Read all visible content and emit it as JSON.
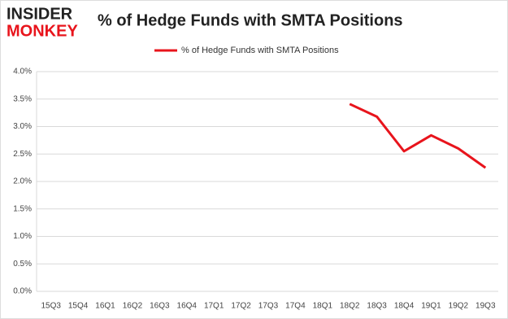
{
  "logo": {
    "top": "INSIDER",
    "bottom": "MONKEY"
  },
  "chart_data": {
    "type": "line",
    "title": "% of Hedge Funds with SMTA Positions",
    "categories": [
      "15Q3",
      "15Q4",
      "16Q1",
      "16Q2",
      "16Q3",
      "16Q4",
      "17Q1",
      "17Q2",
      "17Q3",
      "17Q4",
      "18Q1",
      "18Q2",
      "18Q3",
      "18Q4",
      "19Q1",
      "19Q2",
      "19Q3"
    ],
    "series": [
      {
        "name": "% of Hedge Funds with SMTA Positions",
        "color": "#e8141c",
        "values": [
          null,
          null,
          null,
          null,
          null,
          null,
          null,
          null,
          null,
          null,
          null,
          3.41,
          3.18,
          2.55,
          2.84,
          2.6,
          2.25
        ]
      }
    ],
    "ylim": [
      0,
      4
    ],
    "yticks": [
      {
        "value": 0,
        "label": "0.0%"
      },
      {
        "value": 0.5,
        "label": "0.5%"
      },
      {
        "value": 1,
        "label": "1.0%"
      },
      {
        "value": 1.5,
        "label": "1.5%"
      },
      {
        "value": 2,
        "label": "2.0%"
      },
      {
        "value": 2.5,
        "label": "2.5%"
      },
      {
        "value": 3,
        "label": "3.0%"
      },
      {
        "value": 3.5,
        "label": "3.5%"
      },
      {
        "value": 4,
        "label": "4.0%"
      }
    ],
    "grid": true,
    "legend": "top"
  }
}
